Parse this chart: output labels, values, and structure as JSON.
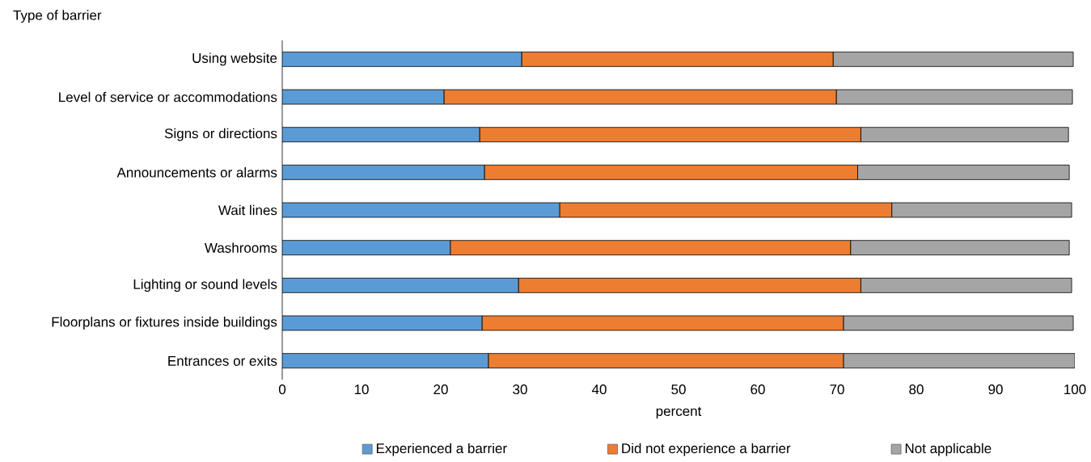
{
  "chart_data": {
    "type": "bar",
    "orientation": "horizontal",
    "stacked": true,
    "ylabel": "Type of barrier",
    "xlabel": "percent",
    "categories": [
      "Using website",
      "Level of service or accommodations",
      "Signs  or directions",
      "Announcements or alarms",
      "Wait lines",
      "Washrooms",
      "Lighting or sound levels",
      "Floorplans  or fixtures inside buildings",
      "Entrances  or exits"
    ],
    "series": [
      {
        "name": "Experienced  a barrier",
        "color": "#5b9bd5",
        "values": [
          30.2,
          20.4,
          24.9,
          25.5,
          35.0,
          21.2,
          29.8,
          25.2,
          26.0
        ]
      },
      {
        "name": "Did not experience  a barrier",
        "color": "#ed7d31",
        "values": [
          39.3,
          49.5,
          48.1,
          47.1,
          41.9,
          50.5,
          43.2,
          45.6,
          44.8
        ]
      },
      {
        "name": "Not applicable",
        "color": "#a5a5a5",
        "values": [
          30.3,
          29.8,
          26.2,
          26.7,
          22.7,
          27.6,
          26.6,
          29.0,
          29.2
        ]
      }
    ],
    "xlim": [
      0,
      100
    ],
    "xticks": [
      0,
      10,
      20,
      30,
      40,
      50,
      60,
      70,
      80,
      90,
      100
    ],
    "legend": "bottom"
  }
}
